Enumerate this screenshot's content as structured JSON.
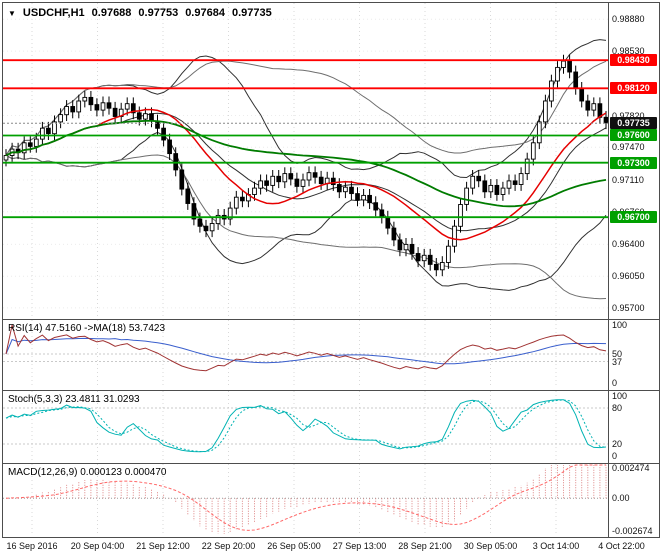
{
  "window": {
    "bg": "#ffffff",
    "frame_color": "#4d4d4d",
    "grid_color": "#d9d9d9"
  },
  "main_chart": {
    "title": {
      "marker": "▼",
      "symbol_period": "USDCHF,H1",
      "open": "0.97688",
      "high": "0.97753",
      "low": "0.97684",
      "close": "0.97735"
    },
    "price_axis_ticks": [
      "0.98880",
      "0.98530",
      "0.97820",
      "0.97470",
      "0.97110",
      "0.96760",
      "0.96400",
      "0.96050",
      "0.95700"
    ],
    "levels": [
      {
        "label": "0.98430",
        "price": 0.9843,
        "color": "#ff0000",
        "kind": "resistance"
      },
      {
        "label": "0.98120",
        "price": 0.9812,
        "color": "#ff0000",
        "kind": "resistance"
      },
      {
        "label": "0.97600",
        "price": 0.976,
        "color": "#00a000",
        "kind": "support"
      },
      {
        "label": "0.97300",
        "price": 0.973,
        "color": "#00a000",
        "kind": "support"
      },
      {
        "label": "0.96700",
        "price": 0.967,
        "color": "#00a000",
        "kind": "support"
      }
    ],
    "current_price": {
      "label": "0.97735",
      "value": 0.97735,
      "badge_bg": "#111111"
    },
    "candle_colors": {
      "bull_fill": "#ffffff",
      "bear_fill": "#000000",
      "outline": "#000000"
    },
    "overlay_colors": {
      "bollinger": "#303030",
      "bollinger_outer": "#6e6e6e",
      "ma_fast": "#e60000",
      "ma_slow": "#007c00"
    }
  },
  "chart_data": [
    {
      "type": "candlestick",
      "symbol": "USDCHF",
      "timeframe": "H1",
      "title": "USDCHF,H1 0.97688 0.97753 0.97684 0.97735",
      "x_labels": [
        "16 Sep 2016",
        "20 Sep 04:00",
        "21 Sep 12:00",
        "22 Sep 20:00",
        "26 Sep 05:00",
        "27 Sep 13:00",
        "28 Sep 21:00",
        "30 Sep 05:00",
        "3 Oct 14:00",
        "4 Oct 22:00"
      ],
      "ylim": [
        0.956,
        0.9906
      ],
      "wick": 0.0007,
      "closes": [
        0.9738,
        0.9745,
        0.9741,
        0.9752,
        0.9748,
        0.9756,
        0.9768,
        0.9762,
        0.9775,
        0.9783,
        0.9792,
        0.9786,
        0.9798,
        0.9802,
        0.9794,
        0.9788,
        0.9796,
        0.979,
        0.9781,
        0.9789,
        0.9795,
        0.9785,
        0.9778,
        0.9784,
        0.9776,
        0.9768,
        0.9755,
        0.974,
        0.9722,
        0.9701,
        0.9685,
        0.9668,
        0.966,
        0.9655,
        0.9663,
        0.9672,
        0.9668,
        0.968,
        0.9692,
        0.9688,
        0.9695,
        0.9702,
        0.971,
        0.9705,
        0.9715,
        0.9709,
        0.9718,
        0.9712,
        0.9704,
        0.9711,
        0.9719,
        0.9714,
        0.9707,
        0.9713,
        0.9706,
        0.9698,
        0.9703,
        0.9696,
        0.9689,
        0.9694,
        0.9686,
        0.9678,
        0.967,
        0.9658,
        0.9645,
        0.9634,
        0.964,
        0.963,
        0.9622,
        0.9628,
        0.9618,
        0.9612,
        0.962,
        0.9638,
        0.966,
        0.9684,
        0.9702,
        0.9715,
        0.971,
        0.9698,
        0.9705,
        0.9695,
        0.9702,
        0.971,
        0.9706,
        0.9718,
        0.9734,
        0.9752,
        0.9775,
        0.9798,
        0.982,
        0.9835,
        0.9842,
        0.983,
        0.9812,
        0.9798,
        0.9788,
        0.9795,
        0.978,
        0.9774
      ]
    },
    {
      "type": "line",
      "name": "RSI",
      "label": "RSI(14) 47.5160 ->MA(18) 53.7423",
      "period": 14,
      "ma_period": 18,
      "current_rsi": 47.516,
      "current_ma": 53.7423,
      "ylim": [
        0,
        100
      ],
      "level_lines": [
        50,
        37
      ],
      "axis_labels": [
        {
          "text": "100",
          "value": 100
        },
        {
          "text": "50",
          "value": 50
        },
        {
          "text": "37",
          "value": 37
        },
        {
          "text": "0",
          "value": 0
        }
      ],
      "colors": {
        "line": "#a03333",
        "ma": "#3a5fcd"
      }
    },
    {
      "type": "line",
      "name": "Stochastic",
      "label": "Stoch(5,3,3) 23.4811 31.0293",
      "k_period": 5,
      "d_period": 3,
      "slowing": 3,
      "current_k": 23.4811,
      "current_d": 31.0293,
      "ylim": [
        0,
        100
      ],
      "level_lines": [
        80,
        20
      ],
      "axis_labels": [
        {
          "text": "100",
          "value": 100
        },
        {
          "text": "80",
          "value": 80
        },
        {
          "text": "20",
          "value": 20
        },
        {
          "text": "0",
          "value": 0
        }
      ],
      "colors": {
        "k": "#00b3b3",
        "d": "#00b3b3"
      }
    },
    {
      "type": "histogram",
      "name": "MACD",
      "label": "MACD(12,26,9) 0.000123 0.000470",
      "fast": 12,
      "slow": 26,
      "signal": 9,
      "current_macd": 0.000123,
      "current_signal": 0.00047,
      "ylim": [
        -0.00297,
        0.00277
      ],
      "axis_labels": [
        {
          "text": "0.002474",
          "value": 0.002474
        },
        {
          "text": "0.00",
          "value": 0
        },
        {
          "text": "-0.002674",
          "value": -0.002674
        }
      ],
      "colors": {
        "hist": "#dd8484",
        "signal": "#ff6666"
      }
    }
  ]
}
